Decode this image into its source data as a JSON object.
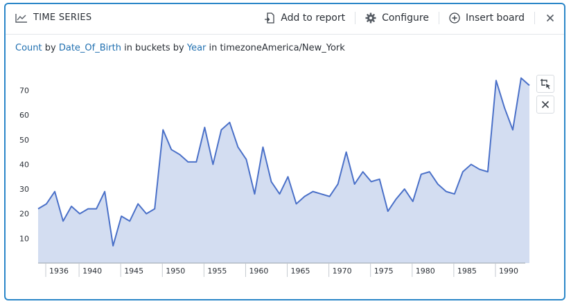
{
  "header": {
    "title": "TIME SERIES",
    "actions": {
      "add_to_report": "Add to report",
      "configure": "Configure",
      "insert_board": "Insert board"
    },
    "close_icon": "close-icon"
  },
  "query": {
    "metric": "Count",
    "by": "by",
    "field": "Date_Of_Birth",
    "in_buckets_by": "in buckets by",
    "bucket": "Year",
    "tz_prefix": "in timezone",
    "timezone": "America/New_York"
  },
  "colors": {
    "accent": "#2a86c8",
    "line": "#4a70c8",
    "area": "#d3ddf1",
    "link": "#1f6fb0"
  },
  "chart_data": {
    "type": "area",
    "xlabel": "",
    "ylabel": "",
    "xlim": [
      1934.0,
      1992.5
    ],
    "ylim": [
      0,
      78
    ],
    "yticks": [
      10,
      20,
      30,
      40,
      50,
      60,
      70
    ],
    "xticks": [
      1936,
      1940,
      1945,
      1950,
      1955,
      1960,
      1965,
      1970,
      1975,
      1980,
      1985,
      1990
    ],
    "grid": false,
    "series": [
      {
        "x": [
          1934,
          1935,
          1936,
          1937,
          1938,
          1939,
          1940,
          1941,
          1942,
          1943,
          1944,
          1945,
          1946,
          1947,
          1948,
          1949,
          1950,
          1951,
          1952,
          1953,
          1954,
          1955,
          1956,
          1957,
          1958,
          1959,
          1960,
          1961,
          1962,
          1963,
          1964,
          1965,
          1966,
          1967,
          1968,
          1969,
          1970,
          1971,
          1972,
          1973,
          1974,
          1975,
          1976,
          1977,
          1978,
          1979,
          1980,
          1981,
          1982,
          1983,
          1984,
          1985,
          1986,
          1987,
          1988,
          1989,
          1990,
          1991,
          1992,
          1993
        ],
        "values": [
          22,
          24,
          29,
          17,
          23,
          20,
          22,
          22,
          29,
          7,
          19,
          17,
          24,
          20,
          22,
          54,
          46,
          44,
          41,
          41,
          55,
          40,
          54,
          57,
          47,
          42,
          28,
          47,
          33,
          28,
          35,
          24,
          27,
          29,
          28,
          27,
          32,
          45,
          32,
          37,
          33,
          34,
          21,
          26,
          30,
          25,
          36,
          37,
          32,
          29,
          28,
          37,
          40,
          38,
          37,
          74,
          63,
          54,
          75,
          72
        ]
      }
    ]
  }
}
